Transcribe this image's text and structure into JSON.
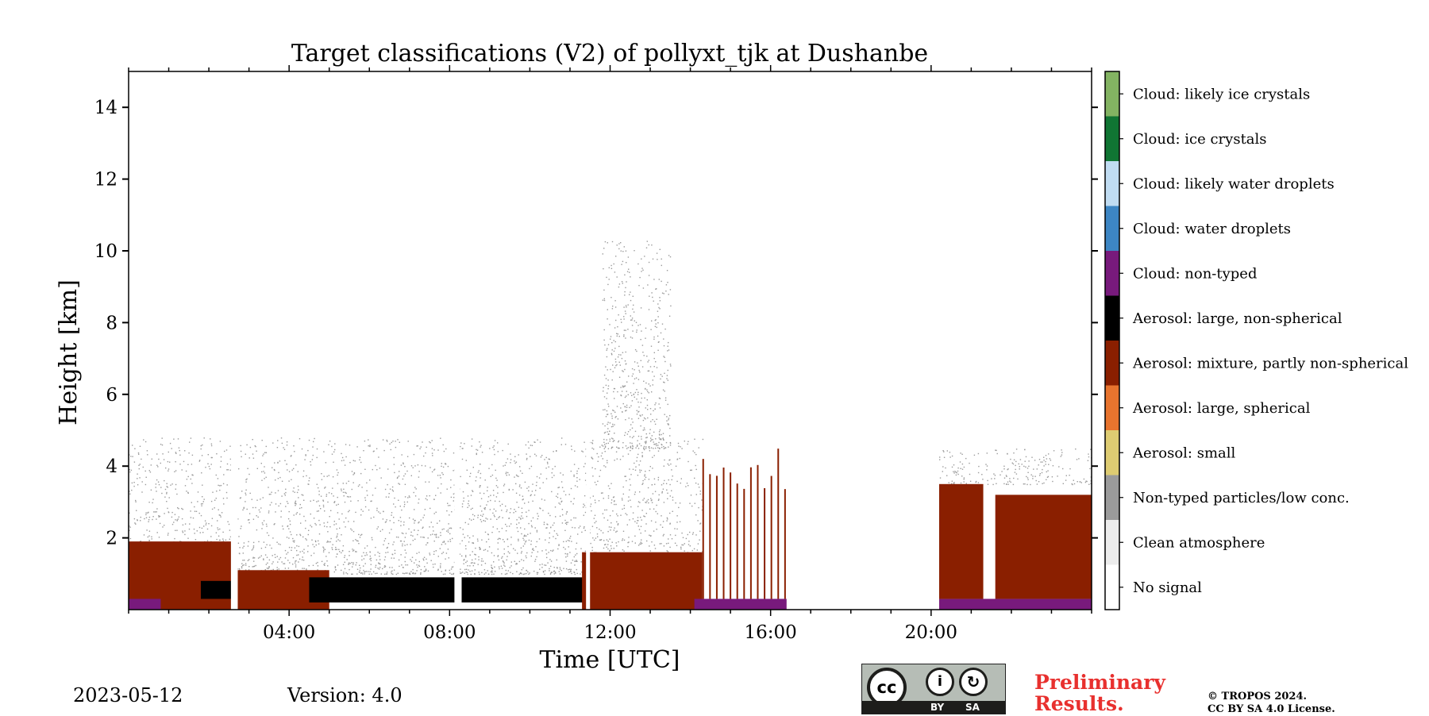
{
  "chart_data": {
    "type": "heatmap",
    "title": "Target classifications (V2) of pollyxt_tjk at Dushanbe",
    "xlabel": "Time [UTC]",
    "ylabel": "Height [km]",
    "xlim": [
      0,
      24
    ],
    "ylim": [
      0,
      15
    ],
    "x_ticks": [
      {
        "value": 4,
        "label": "04:00"
      },
      {
        "value": 8,
        "label": "08:00"
      },
      {
        "value": 12,
        "label": "12:00"
      },
      {
        "value": 16,
        "label": "16:00"
      },
      {
        "value": 20,
        "label": "20:00"
      }
    ],
    "y_ticks": [
      {
        "value": 2,
        "label": "2"
      },
      {
        "value": 4,
        "label": "4"
      },
      {
        "value": 6,
        "label": "6"
      },
      {
        "value": 8,
        "label": "8"
      },
      {
        "value": 10,
        "label": "10"
      },
      {
        "value": 12,
        "label": "12"
      },
      {
        "value": 14,
        "label": "14"
      }
    ],
    "classes": [
      {
        "code": 0,
        "label": "No signal",
        "color": "#ffffff"
      },
      {
        "code": 1,
        "label": "Clean atmosphere",
        "color": "#ececec"
      },
      {
        "code": 2,
        "label": "Non-typed particles/low conc.",
        "color": "#9b9b9b"
      },
      {
        "code": 3,
        "label": "Aerosol: small",
        "color": "#decc72"
      },
      {
        "code": 4,
        "label": "Aerosol: large, spherical",
        "color": "#e8742e"
      },
      {
        "code": 5,
        "label": "Aerosol: mixture, partly non-spherical",
        "color": "#8a1f00"
      },
      {
        "code": 6,
        "label": "Aerosol: large, non-spherical",
        "color": "#000000"
      },
      {
        "code": 7,
        "label": "Cloud: non-typed",
        "color": "#781a7c"
      },
      {
        "code": 8,
        "label": "Cloud: water droplets",
        "color": "#3d86c4"
      },
      {
        "code": 9,
        "label": "Cloud: likely water droplets",
        "color": "#c0dcf2"
      },
      {
        "code": 10,
        "label": "Cloud: ice crystals",
        "color": "#107533"
      },
      {
        "code": 11,
        "label": "Cloud: likely ice crystals",
        "color": "#83b362"
      }
    ],
    "regions": [
      {
        "class": 5,
        "t0": 0.0,
        "t1": 2.6,
        "h0": 0.0,
        "h1": 1.9
      },
      {
        "class": 5,
        "t0": 2.7,
        "t1": 5.0,
        "h0": 0.0,
        "h1": 1.1
      },
      {
        "class": 6,
        "t0": 1.8,
        "t1": 2.6,
        "h0": 0.3,
        "h1": 0.8
      },
      {
        "class": 6,
        "t0": 4.5,
        "t1": 8.2,
        "h0": 0.2,
        "h1": 0.9
      },
      {
        "class": 6,
        "t0": 8.3,
        "t1": 11.4,
        "h0": 0.2,
        "h1": 0.9
      },
      {
        "class": 5,
        "t0": 11.3,
        "t1": 14.3,
        "h0": 0.0,
        "h1": 1.6
      },
      {
        "class": 7,
        "t0": 0.0,
        "t1": 0.8,
        "h0": 0.0,
        "h1": 0.3
      },
      {
        "class": 7,
        "t0": 14.1,
        "t1": 16.4,
        "h0": 0.0,
        "h1": 0.3
      },
      {
        "class": 7,
        "t0": 20.2,
        "t1": 24.0,
        "h0": 0.0,
        "h1": 0.3
      },
      {
        "class": 5,
        "t0": 20.2,
        "t1": 21.3,
        "h0": 0.3,
        "h1": 3.5
      },
      {
        "class": 5,
        "t0": 21.6,
        "t1": 24.0,
        "h0": 0.3,
        "h1": 3.2
      }
    ],
    "noise_regions": [
      {
        "t0": 0.0,
        "t1": 14.3,
        "h0": 1.0,
        "h1": 4.8,
        "class": 2
      },
      {
        "t0": 11.8,
        "t1": 13.5,
        "h0": 4.5,
        "h1": 10.3,
        "class": 2
      },
      {
        "t0": 20.2,
        "t1": 24.0,
        "h0": 3.5,
        "h1": 4.5,
        "class": 2
      }
    ],
    "profile_stripes": {
      "t0": 14.3,
      "t1": 16.4,
      "h1": 4.5,
      "class": 5
    },
    "gaps": [
      {
        "t0": 2.55,
        "t1": 2.72
      },
      {
        "t0": 8.12,
        "t1": 8.25
      },
      {
        "t0": 11.4,
        "t1": 11.5
      },
      {
        "t0": 16.4,
        "t1": 20.2
      }
    ]
  },
  "footer": {
    "date": "2023-05-12",
    "version": "Version: 4.0",
    "preliminary_line1": "Preliminary",
    "preliminary_line2": "Results.",
    "copyright_line1": "© TROPOS 2024.",
    "copyright_line2": "CC BY SA 4.0 License.",
    "license_badge": {
      "cc": "cc",
      "by": "BY",
      "sa": "SA"
    }
  }
}
